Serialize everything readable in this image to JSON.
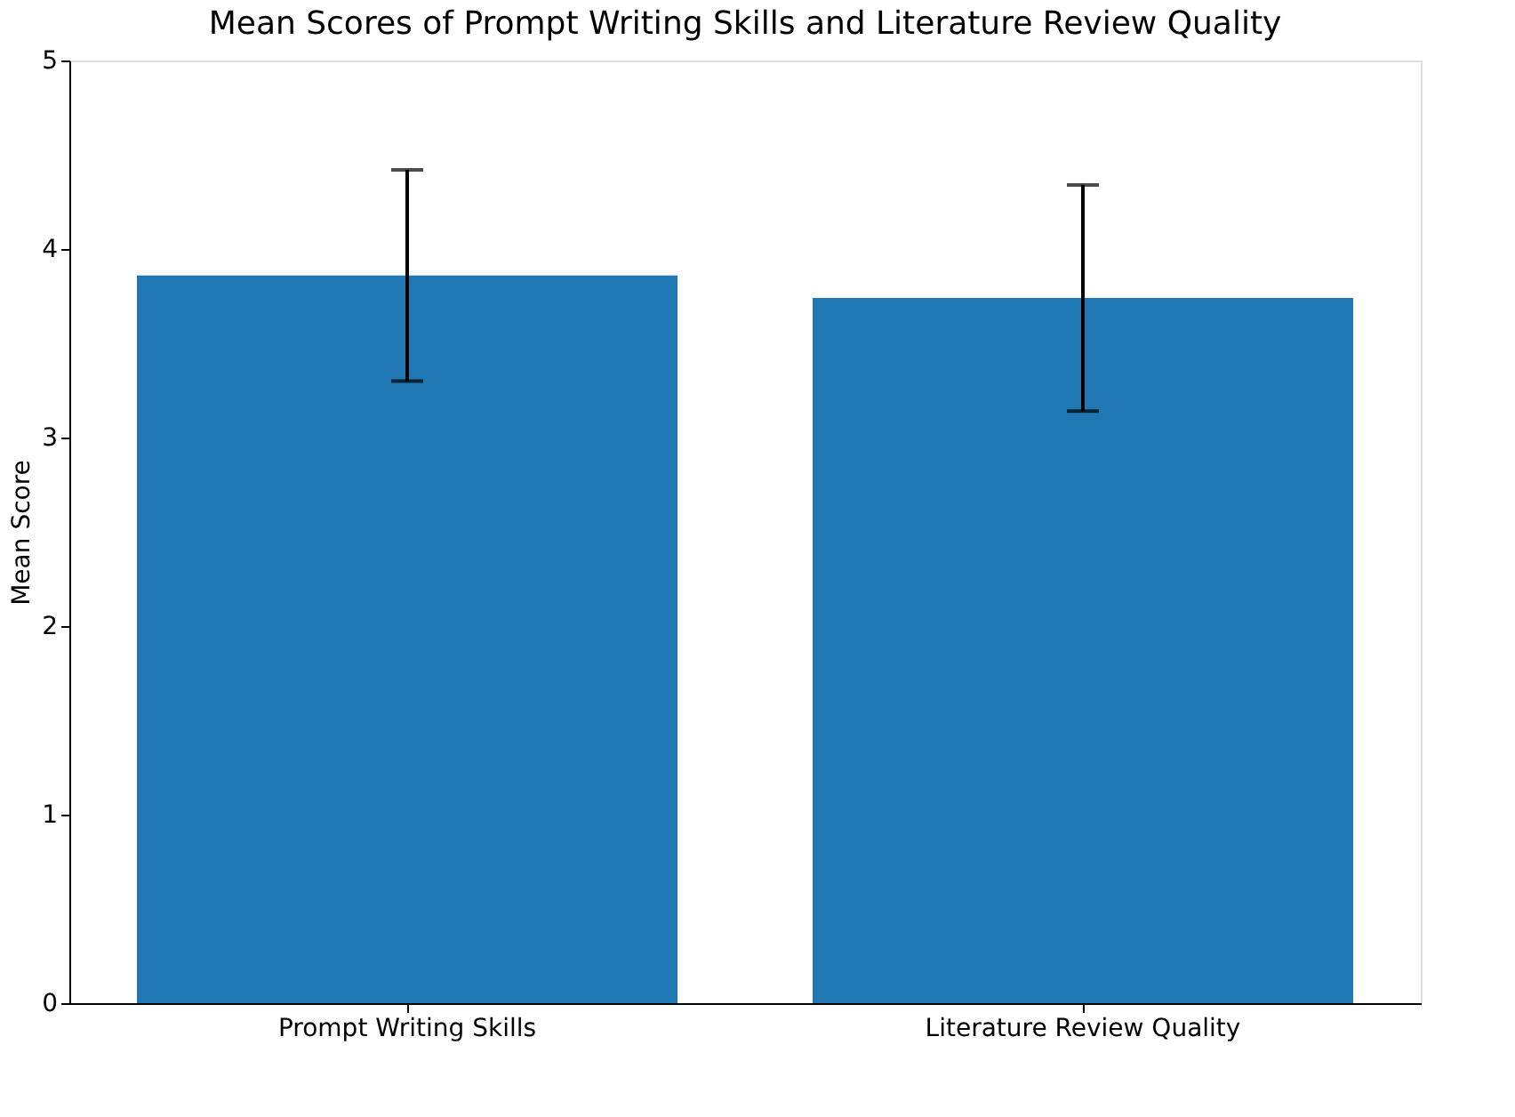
{
  "chart_data": {
    "type": "bar",
    "title": "Mean Scores of Prompt Writing Skills and Literature Review Quality",
    "categories": [
      "Prompt Writing Skills",
      "Literature Review Quality"
    ],
    "values": [
      3.86,
      3.74
    ],
    "errors": [
      0.56,
      0.6
    ],
    "color": "#1f77b4",
    "ylabel": "Mean Score",
    "ylim": [
      0,
      5
    ],
    "yticks": [
      0,
      1,
      2,
      3,
      4,
      5
    ],
    "grid": false
  }
}
